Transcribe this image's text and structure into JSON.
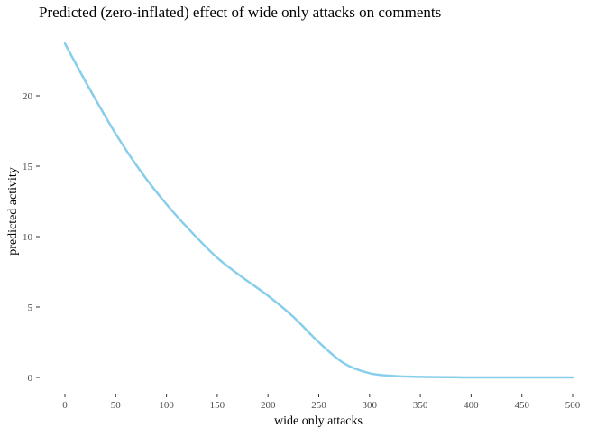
{
  "chart_data": {
    "type": "line",
    "title": "Predicted (zero-inflated) effect of wide only attacks on comments",
    "xlabel": "wide only attacks",
    "ylabel": "predicted activity",
    "xlim": [
      0,
      500
    ],
    "ylim": [
      0,
      24
    ],
    "xticks": [
      0,
      50,
      100,
      150,
      200,
      250,
      300,
      350,
      400,
      450,
      500
    ],
    "yticks": [
      0,
      5,
      10,
      15,
      20
    ],
    "grid": false,
    "series": [
      {
        "color": "#87CEEB",
        "x": [
          0,
          25,
          50,
          75,
          100,
          125,
          150,
          175,
          200,
          225,
          250,
          275,
          300,
          325,
          350,
          375,
          400,
          450,
          500
        ],
        "y": [
          23.7,
          20.4,
          17.3,
          14.6,
          12.3,
          10.3,
          8.5,
          7.1,
          5.8,
          4.3,
          2.5,
          1.0,
          0.3,
          0.1,
          0.04,
          0.02,
          0.0,
          0.0,
          0.0
        ]
      }
    ]
  }
}
